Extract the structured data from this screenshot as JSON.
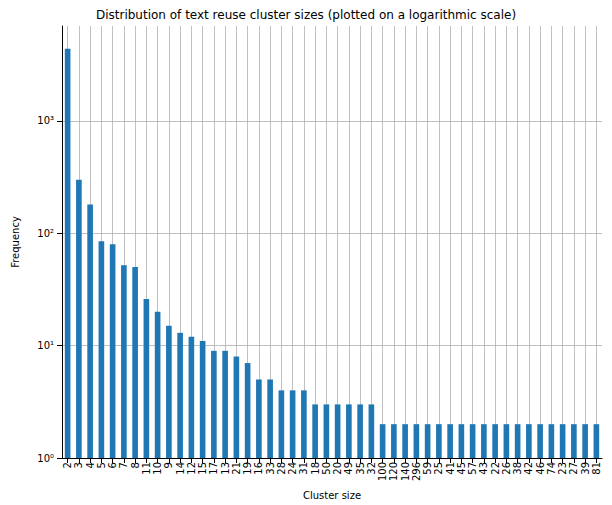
{
  "chart_data": {
    "type": "bar",
    "title": "Distribution of text reuse cluster sizes (plotted on a logarithmic scale)",
    "x_label": "Cluster size",
    "y_label": "Frequency",
    "categories": [
      "2",
      "3",
      "4",
      "5",
      "6",
      "7",
      "8",
      "11",
      "10",
      "9",
      "14",
      "12",
      "15",
      "17",
      "13",
      "21",
      "19",
      "16",
      "33",
      "28",
      "24",
      "31",
      "18",
      "50",
      "20",
      "49",
      "35",
      "32",
      "100",
      "120",
      "140",
      "296",
      "59",
      "25",
      "41",
      "45",
      "57",
      "43",
      "22",
      "26",
      "38",
      "42",
      "46",
      "74",
      "23",
      "27",
      "39",
      "81"
    ],
    "values": [
      4400,
      300,
      180,
      85,
      80,
      52,
      50,
      26,
      20,
      15,
      13,
      12,
      11,
      9,
      9,
      8,
      7,
      5,
      5,
      4,
      4,
      4,
      3,
      3,
      3,
      3,
      3,
      3,
      2,
      2,
      2,
      2,
      2,
      2,
      2,
      2,
      2,
      2,
      2,
      2,
      2,
      2,
      2,
      2,
      2,
      2,
      2,
      2
    ],
    "color": "#1f77b4",
    "log": "y",
    "ylim": [
      1,
      7000
    ],
    "yticks": [
      {
        "value": 1,
        "label": "10⁰"
      },
      {
        "value": 10,
        "label": "10¹"
      },
      {
        "value": 100,
        "label": "10²"
      },
      {
        "value": 1000,
        "label": "10³"
      }
    ],
    "grid": true
  }
}
